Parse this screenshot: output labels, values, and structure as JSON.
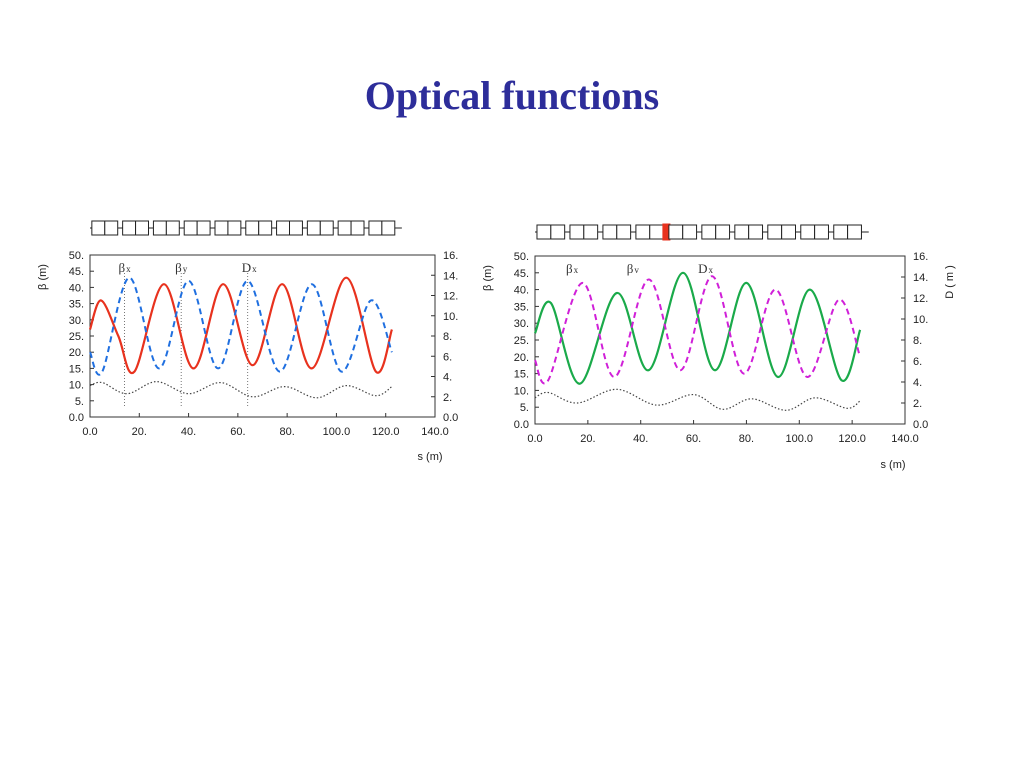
{
  "slide": {
    "title": "Optical functions"
  },
  "colors": {
    "title": "#2d2d9a",
    "betax_left": "#e8321e",
    "betay_left": "#1f6fe0",
    "betax_right": "#1aaa4a",
    "betay_right": "#d020d8",
    "dispersion": "#444444",
    "defect": "#e8321e"
  },
  "chart_data": [
    {
      "type": "line",
      "title": "",
      "xlabel": "s (m)",
      "ylabel": "β (m)",
      "y2label": "",
      "xlim": [
        0,
        140
      ],
      "ylim": [
        0,
        50
      ],
      "y2lim": [
        0,
        16
      ],
      "xticks": [
        "0.0",
        "20.",
        "40.",
        "60.",
        "80.",
        "100.0",
        "120.0",
        "140.0"
      ],
      "yticks": [
        "0.0",
        "5.",
        "10.",
        "15.",
        "20.",
        "25.",
        "30.",
        "35.",
        "40.",
        "45.",
        "50."
      ],
      "y2ticks": [
        "0.0",
        "2.",
        "4.",
        "6.",
        "8.",
        "10.",
        "12.",
        "14.",
        "16."
      ],
      "lattice_cells": 10,
      "legend": [
        {
          "sym": "β",
          "sub": "x",
          "s": 14
        },
        {
          "sym": "β",
          "sub": "y",
          "s": 37
        },
        {
          "sym": "D",
          "sub": "x",
          "s": 64
        }
      ],
      "series": [
        {
          "name": "βx",
          "style": "solid",
          "color": "#e8321e",
          "axis": "left",
          "x": [
            0,
            4.5,
            11.5,
            18,
            30,
            42,
            54,
            66,
            78,
            90,
            104,
            116,
            122.5
          ],
          "y": [
            27,
            36,
            25,
            14,
            41,
            15,
            41,
            16,
            41,
            15,
            43,
            14,
            27
          ]
        },
        {
          "name": "βy",
          "style": "dashed",
          "color": "#1f6fe0",
          "axis": "left",
          "x": [
            0,
            5,
            16,
            28,
            40,
            52,
            64,
            77,
            90,
            102,
            114,
            122.5
          ],
          "y": [
            20,
            14,
            43,
            15,
            42,
            15,
            42,
            14,
            41,
            14,
            36,
            20
          ]
        },
        {
          "name": "Dx",
          "style": "dotted",
          "color": "#444444",
          "axis": "right",
          "x": [
            0,
            5,
            15,
            27,
            40,
            53,
            66,
            79,
            92,
            104,
            116,
            122.5
          ],
          "y": [
            3.1,
            3.4,
            2.3,
            3.5,
            2.3,
            3.4,
            2.0,
            3.0,
            1.9,
            3.1,
            2.1,
            3.0
          ]
        }
      ],
      "markers": [
        14,
        37,
        64
      ]
    },
    {
      "type": "line",
      "title": "",
      "xlabel": "s (m)",
      "ylabel": "β (m)",
      "y2label": "D ( m )",
      "xlim": [
        0,
        140
      ],
      "ylim": [
        0,
        50
      ],
      "y2lim": [
        0,
        16
      ],
      "xticks": [
        "0.0",
        "20.",
        "40.",
        "60.",
        "80.",
        "100.0",
        "120.0",
        "140.0"
      ],
      "yticks": [
        "0.0",
        "5.",
        "10.",
        "15.",
        "20.",
        "25.",
        "30.",
        "35.",
        "40.",
        "45.",
        "50."
      ],
      "y2ticks": [
        "0.0",
        "2.",
        "4.",
        "6.",
        "8.",
        "10.",
        "12.",
        "14.",
        "16."
      ],
      "lattice_cells": 10,
      "defect_after_cell": 4,
      "legend": [
        {
          "sym": "β",
          "sub": "x",
          "s": 14
        },
        {
          "sym": "β",
          "sub": "v",
          "s": 37
        },
        {
          "sym": "D",
          "sub": "x",
          "s": 64
        }
      ],
      "series": [
        {
          "name": "βx",
          "style": "solid",
          "color": "#1aaa4a",
          "axis": "left",
          "x": [
            0,
            6,
            17,
            31,
            43,
            56,
            68,
            80,
            92,
            104,
            116,
            123
          ],
          "y": [
            27,
            36,
            12,
            39,
            16,
            45,
            16,
            42,
            14,
            40,
            13,
            28
          ]
        },
        {
          "name": "βv",
          "style": "dashed",
          "color": "#d020d8",
          "axis": "left",
          "x": [
            0,
            5,
            18,
            30,
            43,
            55,
            67,
            79,
            91,
            103,
            115,
            123
          ],
          "y": [
            19,
            13,
            42,
            14,
            43,
            16,
            44,
            15,
            40,
            14,
            37,
            20
          ]
        },
        {
          "name": "Dx",
          "style": "dotted",
          "color": "#444444",
          "axis": "right",
          "x": [
            0,
            5,
            16,
            31,
            46,
            60,
            71,
            82,
            95,
            106,
            118,
            123
          ],
          "y": [
            2.5,
            3.0,
            2.0,
            3.3,
            1.8,
            2.8,
            1.4,
            2.4,
            1.3,
            2.5,
            1.5,
            2.2
          ]
        }
      ],
      "markers": []
    }
  ]
}
